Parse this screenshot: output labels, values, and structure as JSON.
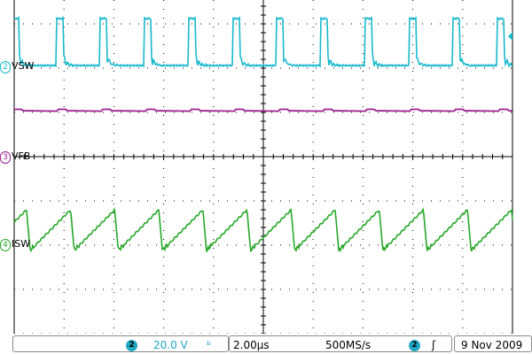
{
  "channels": [
    {
      "id": "2",
      "label": "VSW",
      "color": "#19b9cd"
    },
    {
      "id": "3",
      "label": "VFB",
      "color": "#9b1f8f"
    },
    {
      "id": "4",
      "label": "ISW",
      "color": "#28a82a"
    }
  ],
  "statusbar": {
    "channel_badge": "2",
    "volts_per_div": "20.0 V",
    "bw_symbol": "ᵇ",
    "time_per_div": "2.00µs",
    "sample_rate": "500MS/s",
    "trigger_badge": "2",
    "trigger_slope": "ʃ",
    "date": "9 Nov 2009"
  },
  "colors": {
    "grid": "#000000",
    "background": "#ffffff",
    "accent": "#1fa6c2"
  }
}
